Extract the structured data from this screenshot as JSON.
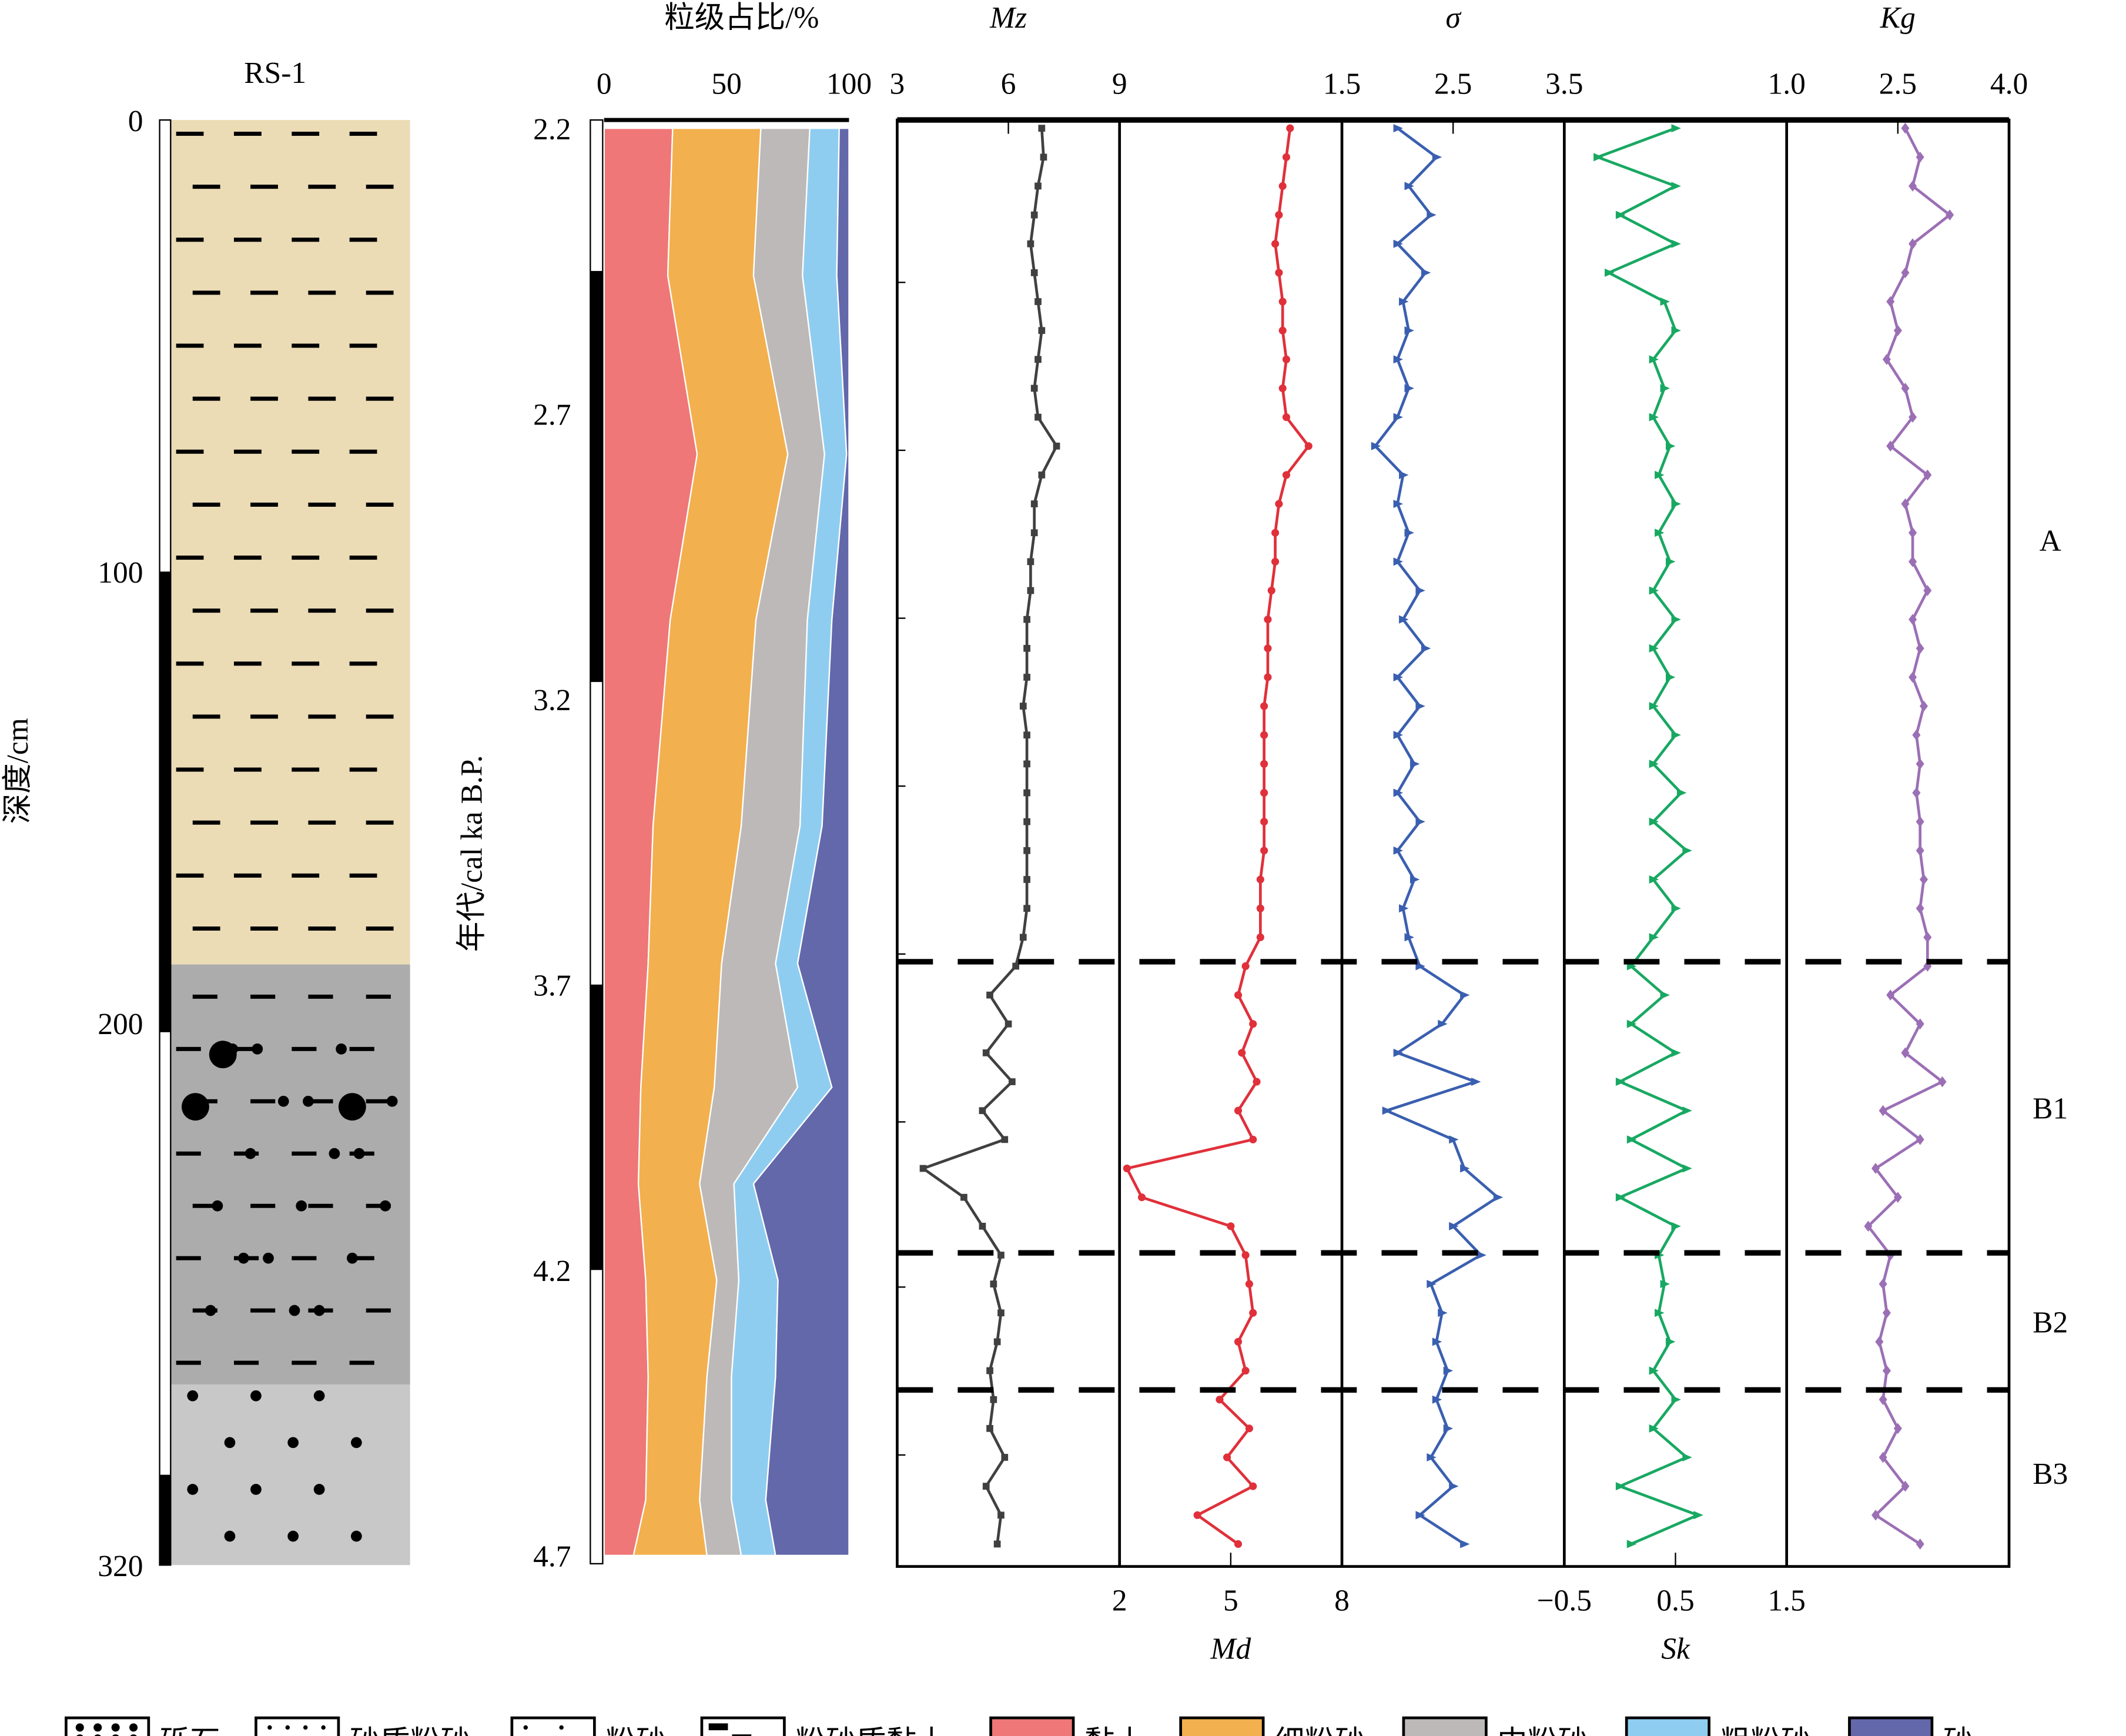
{
  "chart_data": {
    "type": "line",
    "column_title": "RS-1",
    "depth_axis": {
      "label": "深度/cm",
      "ticks": [
        0,
        100,
        200,
        320
      ],
      "range": [
        0,
        320
      ]
    },
    "age_axis": {
      "label": "年代/cal  ka B.P.",
      "ticks": [
        "2.2",
        "2.7",
        "3.2",
        "3.7",
        "4.2",
        "4.7"
      ],
      "range": [
        2.2,
        4.7
      ]
    },
    "core_bar_black_segments_depth": [
      [
        100,
        202
      ],
      [
        300,
        320
      ]
    ],
    "age_bar_black_segments": [
      [
        2.45,
        3.17
      ],
      [
        3.7,
        4.2
      ]
    ],
    "lithology": [
      {
        "from": 0,
        "to": 187,
        "type": "粉砂质黏土",
        "color": "#ebdcb6"
      },
      {
        "from": 187,
        "to": 280,
        "type": "粉砂",
        "color": "#acacac"
      },
      {
        "from": 280,
        "to": 320,
        "type": "砂质粉砂",
        "color": "#c8c8c8"
      }
    ],
    "grain": {
      "title": "粒级占比/%",
      "ticks": [
        "0",
        "50",
        "100"
      ],
      "components": [
        {
          "name": "黏土",
          "color": "#ef7777"
        },
        {
          "name": "细粉砂",
          "color": "#f3b04e"
        },
        {
          "name": "中粉砂",
          "color": "#bdb9b9"
        },
        {
          "name": "粗粉砂",
          "color": "#8fcdf0"
        },
        {
          "name": "砂",
          "color": "#6368ab"
        }
      ],
      "ages": [
        2.2,
        2.458,
        2.771,
        3.061,
        3.422,
        3.663,
        3.88,
        4.049,
        4.218,
        4.387,
        4.603,
        4.7
      ],
      "values": [
        [
          28,
          36,
          20,
          12,
          4
        ],
        [
          26,
          35,
          20,
          14,
          5
        ],
        [
          38,
          37,
          15,
          9,
          1
        ],
        [
          27,
          35,
          21,
          10,
          7
        ],
        [
          20,
          36,
          24,
          9,
          11
        ],
        [
          18,
          30,
          22,
          9,
          21
        ],
        [
          15,
          30,
          34,
          14,
          7
        ],
        [
          14,
          25,
          14,
          8,
          39
        ],
        [
          17,
          29,
          9,
          16,
          29
        ],
        [
          18,
          24,
          10,
          18,
          30
        ],
        [
          17,
          22,
          13,
          14,
          34
        ],
        [
          12,
          30,
          14,
          14,
          30
        ]
      ]
    },
    "series_age_range": [
      2.2,
      4.68
    ],
    "series": [
      {
        "name": "Mz",
        "color": "#404040",
        "marker": "square",
        "axis_ticks": [
          "3",
          "6",
          "9"
        ],
        "range": [
          3,
          9
        ],
        "label_pos": "top",
        "values": [
          6.9,
          6.95,
          6.8,
          6.7,
          6.6,
          6.7,
          6.8,
          6.9,
          6.8,
          6.7,
          6.8,
          7.3,
          6.9,
          6.7,
          6.7,
          6.6,
          6.6,
          6.5,
          6.5,
          6.5,
          6.4,
          6.5,
          6.5,
          6.5,
          6.5,
          6.5,
          6.5,
          6.5,
          6.4,
          6.2,
          5.5,
          6.0,
          5.4,
          6.1,
          5.3,
          5.9,
          3.7,
          4.8,
          5.3,
          5.8,
          5.6,
          5.8,
          5.7,
          5.5,
          5.6,
          5.5,
          5.9,
          5.4,
          5.8,
          5.7
        ]
      },
      {
        "name": "Md",
        "color": "#e0303a",
        "marker": "circle",
        "axis_ticks": [
          "2",
          "5",
          "8"
        ],
        "range": [
          2,
          8
        ],
        "label_pos": "bottom",
        "values": [
          6.6,
          6.5,
          6.4,
          6.3,
          6.2,
          6.3,
          6.4,
          6.4,
          6.5,
          6.4,
          6.5,
          7.1,
          6.5,
          6.3,
          6.2,
          6.2,
          6.1,
          6.0,
          6.0,
          6.0,
          5.9,
          5.9,
          5.9,
          5.9,
          5.9,
          5.9,
          5.8,
          5.8,
          5.8,
          5.4,
          5.2,
          5.6,
          5.3,
          5.7,
          5.2,
          5.6,
          2.2,
          2.6,
          5.0,
          5.4,
          5.5,
          5.6,
          5.2,
          5.4,
          4.7,
          5.5,
          4.9,
          5.6,
          4.1,
          5.2
        ]
      },
      {
        "name": "σ",
        "color": "#3a5fb0",
        "marker": "triangle",
        "axis_ticks": [
          "1.5",
          "2.5",
          "3.5"
        ],
        "range": [
          1.5,
          3.5
        ],
        "label_pos": "top",
        "values": [
          2.0,
          2.35,
          2.1,
          2.3,
          2.0,
          2.25,
          2.05,
          2.1,
          2.0,
          2.1,
          2.0,
          1.8,
          2.05,
          2.0,
          2.1,
          2.0,
          2.2,
          2.05,
          2.25,
          2.0,
          2.2,
          2.0,
          2.15,
          2.0,
          2.2,
          2.0,
          2.15,
          2.05,
          2.1,
          2.2,
          2.6,
          2.4,
          2.0,
          2.7,
          1.9,
          2.5,
          2.6,
          2.9,
          2.5,
          2.75,
          2.3,
          2.4,
          2.35,
          2.45,
          2.35,
          2.45,
          2.3,
          2.5,
          2.2,
          2.6
        ]
      },
      {
        "name": "Sk",
        "color": "#18a862",
        "marker": "triangle",
        "axis_ticks": [
          "−0.5",
          "0.5",
          "1.5"
        ],
        "range": [
          -0.5,
          1.5
        ],
        "label_pos": "bottom",
        "values": [
          0.5,
          -0.2,
          0.5,
          0.0,
          0.5,
          -0.1,
          0.4,
          0.5,
          0.3,
          0.4,
          0.3,
          0.45,
          0.35,
          0.5,
          0.35,
          0.45,
          0.3,
          0.5,
          0.3,
          0.45,
          0.3,
          0.5,
          0.3,
          0.55,
          0.3,
          0.6,
          0.3,
          0.5,
          0.3,
          0.1,
          0.4,
          0.1,
          0.5,
          0.0,
          0.6,
          0.1,
          0.6,
          0.0,
          0.5,
          0.35,
          0.4,
          0.35,
          0.45,
          0.3,
          0.5,
          0.3,
          0.6,
          0.0,
          0.7,
          0.1
        ]
      },
      {
        "name": "Kg",
        "color": "#9b6fb5",
        "marker": "diamond",
        "axis_ticks": [
          "1.0",
          "2.5",
          "4.0"
        ],
        "range": [
          1.0,
          4.0
        ],
        "label_pos": "top",
        "values": [
          2.6,
          2.8,
          2.7,
          3.2,
          2.7,
          2.6,
          2.4,
          2.5,
          2.35,
          2.6,
          2.7,
          2.4,
          2.9,
          2.6,
          2.7,
          2.7,
          2.9,
          2.7,
          2.8,
          2.7,
          2.85,
          2.75,
          2.8,
          2.75,
          2.8,
          2.8,
          2.85,
          2.8,
          2.9,
          2.9,
          2.4,
          2.8,
          2.6,
          3.1,
          2.3,
          2.8,
          2.2,
          2.5,
          2.1,
          2.4,
          2.3,
          2.35,
          2.25,
          2.35,
          2.3,
          2.5,
          2.3,
          2.6,
          2.2,
          2.8
        ]
      }
    ],
    "zones": [
      {
        "label": "A",
        "from": 2.2,
        "to": 3.66
      },
      {
        "label": "B1",
        "from": 3.66,
        "to": 4.17
      },
      {
        "label": "B2",
        "from": 4.17,
        "to": 4.41
      },
      {
        "label": "B3",
        "from": 4.41,
        "to": 4.7
      }
    ],
    "zone_boundaries": [
      3.66,
      4.17,
      4.41
    ]
  },
  "legend": [
    {
      "label": "砾石",
      "pattern": "gravel"
    },
    {
      "label": "砂质粉砂",
      "pattern": "sandy-silt"
    },
    {
      "label": "粉砂",
      "pattern": "silt"
    },
    {
      "label": "粉砂质黏土",
      "pattern": "silty-clay"
    },
    {
      "label": "黏土",
      "color": "#ef7777"
    },
    {
      "label": "细粉砂",
      "color": "#f3b04e"
    },
    {
      "label": "中粉砂",
      "color": "#bdb9b9"
    },
    {
      "label": "粗粉砂",
      "color": "#8fcdf0"
    },
    {
      "label": "砂",
      "color": "#6368ab"
    }
  ]
}
